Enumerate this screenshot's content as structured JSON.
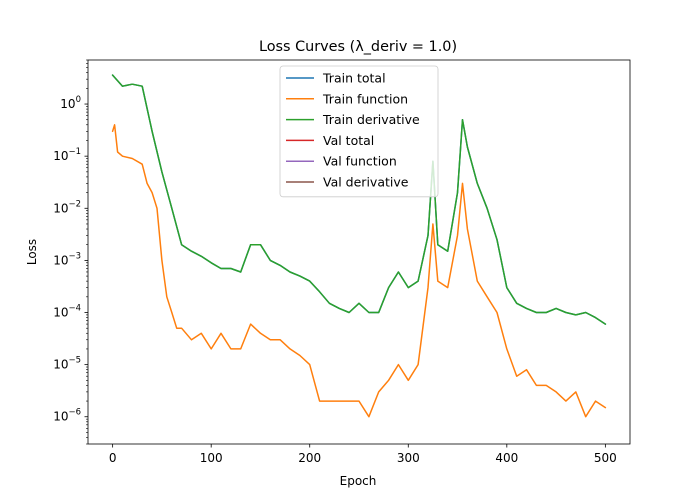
{
  "chart_data": {
    "type": "line",
    "title": "Loss Curves (λ_deriv = 1.0)",
    "xlabel": "Epoch",
    "ylabel": "Loss",
    "y_scale": "log",
    "xlim": [
      -25,
      525
    ],
    "ylim": [
      3e-07,
      7
    ],
    "x_ticks": [
      0,
      100,
      200,
      300,
      400,
      500
    ],
    "y_ticks": [
      {
        "value": 1e-06,
        "base": "10",
        "exp": "−6"
      },
      {
        "value": 1e-05,
        "base": "10",
        "exp": "−5"
      },
      {
        "value": 0.0001,
        "base": "10",
        "exp": "−4"
      },
      {
        "value": 0.001,
        "base": "10",
        "exp": "−3"
      },
      {
        "value": 0.01,
        "base": "10",
        "exp": "−2"
      },
      {
        "value": 0.1,
        "base": "10",
        "exp": "−1"
      },
      {
        "value": 1,
        "base": "10",
        "exp": "0"
      }
    ],
    "grid": false,
    "legend_position": "top-center",
    "series": [
      {
        "name": "Train total",
        "color": "#1f77b4",
        "x": [
          0,
          10,
          20,
          30,
          40,
          50,
          60,
          70,
          80,
          90,
          100,
          110,
          120,
          130,
          140,
          150,
          160,
          170,
          180,
          190,
          200,
          210,
          220,
          230,
          240,
          250,
          260,
          270,
          280,
          290,
          300,
          310,
          320,
          325,
          330,
          340,
          350,
          355,
          360,
          370,
          380,
          390,
          400,
          410,
          420,
          430,
          440,
          450,
          460,
          470,
          480,
          490,
          500
        ],
        "y": [
          3.6,
          2.2,
          2.4,
          2.2,
          0.3,
          0.05,
          0.01,
          0.002,
          0.0015,
          0.0012,
          0.0009,
          0.0007,
          0.0007,
          0.0006,
          0.002,
          0.002,
          0.001,
          0.0008,
          0.0006,
          0.0005,
          0.0004,
          0.00025,
          0.00015,
          0.00012,
          0.0001,
          0.00015,
          0.0001,
          0.0001,
          0.0003,
          0.0006,
          0.0003,
          0.0004,
          0.003,
          0.08,
          0.002,
          0.0015,
          0.02,
          0.5,
          0.15,
          0.03,
          0.01,
          0.0025,
          0.0003,
          0.00015,
          0.00012,
          0.0001,
          0.0001,
          0.00012,
          0.0001,
          9e-05,
          0.0001,
          8e-05,
          6e-05
        ]
      },
      {
        "name": "Train function",
        "color": "#ff7f0e",
        "x": [
          0,
          2,
          5,
          10,
          20,
          30,
          35,
          40,
          45,
          50,
          55,
          60,
          65,
          70,
          80,
          90,
          100,
          110,
          120,
          130,
          140,
          150,
          160,
          170,
          180,
          190,
          200,
          210,
          220,
          230,
          240,
          250,
          260,
          270,
          280,
          290,
          300,
          310,
          320,
          325,
          330,
          340,
          350,
          355,
          360,
          370,
          380,
          390,
          400,
          410,
          420,
          430,
          440,
          450,
          460,
          470,
          480,
          490,
          500
        ],
        "y": [
          0.3,
          0.4,
          0.12,
          0.1,
          0.09,
          0.07,
          0.03,
          0.02,
          0.01,
          0.001,
          0.0002,
          0.0001,
          5e-05,
          5e-05,
          3e-05,
          4e-05,
          2e-05,
          4e-05,
          2e-05,
          2e-05,
          6e-05,
          4e-05,
          3e-05,
          3e-05,
          2e-05,
          1.5e-05,
          1e-05,
          2e-06,
          2e-06,
          2e-06,
          2e-06,
          2e-06,
          1e-06,
          3e-06,
          5e-06,
          1e-05,
          5e-06,
          1e-05,
          0.0003,
          0.005,
          0.0004,
          0.0003,
          0.003,
          0.03,
          0.004,
          0.0004,
          0.0002,
          0.0001,
          2e-05,
          6e-06,
          8e-06,
          4e-06,
          4e-06,
          3e-06,
          2e-06,
          3e-06,
          1e-06,
          2e-06,
          1.5e-06
        ]
      },
      {
        "name": "Train derivative",
        "color": "#2ca02c",
        "x": [
          0,
          10,
          20,
          30,
          40,
          50,
          60,
          70,
          80,
          90,
          100,
          110,
          120,
          130,
          140,
          150,
          160,
          170,
          180,
          190,
          200,
          210,
          220,
          230,
          240,
          250,
          260,
          270,
          280,
          290,
          300,
          310,
          320,
          325,
          330,
          340,
          350,
          355,
          360,
          370,
          380,
          390,
          400,
          410,
          420,
          430,
          440,
          450,
          460,
          470,
          480,
          490,
          500
        ],
        "y": [
          3.6,
          2.2,
          2.4,
          2.2,
          0.3,
          0.05,
          0.01,
          0.002,
          0.0015,
          0.0012,
          0.0009,
          0.0007,
          0.0007,
          0.0006,
          0.002,
          0.002,
          0.001,
          0.0008,
          0.0006,
          0.0005,
          0.0004,
          0.00025,
          0.00015,
          0.00012,
          0.0001,
          0.00015,
          0.0001,
          0.0001,
          0.0003,
          0.0006,
          0.0003,
          0.0004,
          0.003,
          0.08,
          0.002,
          0.0015,
          0.02,
          0.5,
          0.15,
          0.03,
          0.01,
          0.0025,
          0.0003,
          0.00015,
          0.00012,
          0.0001,
          0.0001,
          0.00012,
          0.0001,
          9e-05,
          0.0001,
          8e-05,
          6e-05
        ]
      },
      {
        "name": "Val total",
        "color": "#d62728",
        "x": [],
        "y": []
      },
      {
        "name": "Val function",
        "color": "#9467bd",
        "x": [],
        "y": []
      },
      {
        "name": "Val derivative",
        "color": "#8c564b",
        "x": [],
        "y": []
      }
    ]
  }
}
